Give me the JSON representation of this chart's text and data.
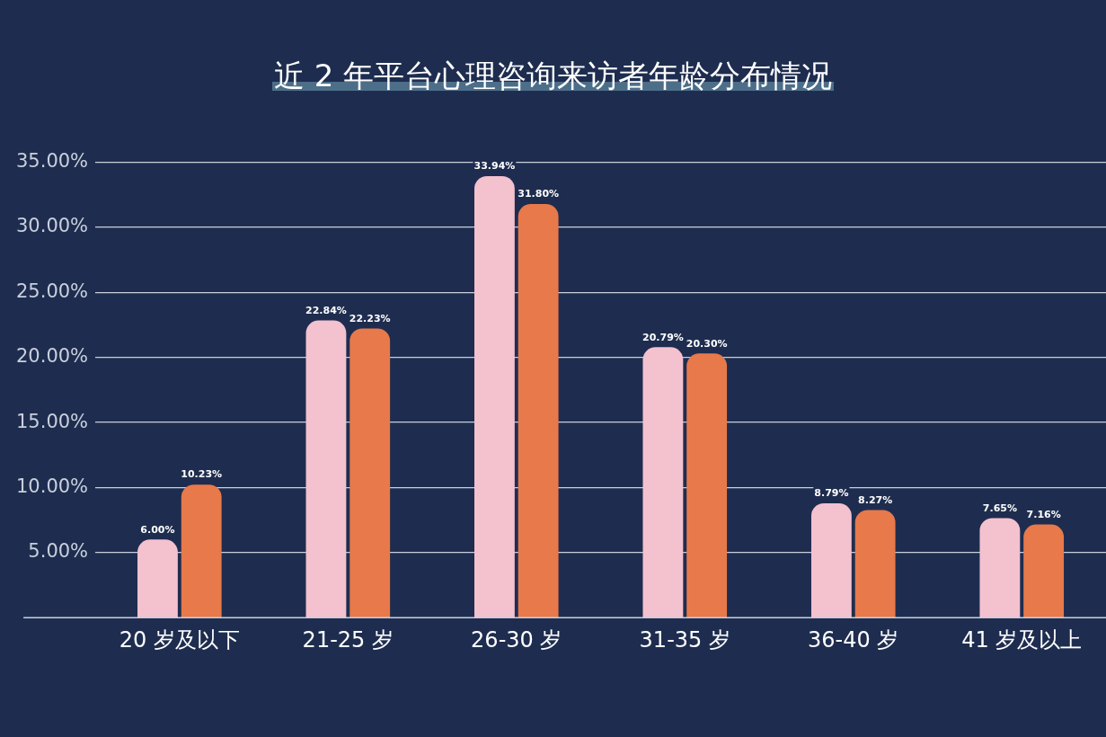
{
  "chart_data": {
    "type": "bar",
    "title": "近 2 年平台心理咨询来访者年龄分布情况",
    "categories": [
      "20 岁及以下",
      "21-25 岁",
      "26-30 岁",
      "31-35 岁",
      "36-40 岁",
      "41 岁及以上"
    ],
    "series": [
      {
        "color": "#f4c1cf",
        "values": [
          6.0,
          22.84,
          33.94,
          20.79,
          8.79,
          7.65
        ],
        "value_labels": [
          "6.00%",
          "22.84%",
          "33.94%",
          "20.79%",
          "8.79%",
          "7.65%"
        ]
      },
      {
        "color": "#e8794a",
        "values": [
          10.23,
          22.23,
          31.8,
          20.3,
          8.27,
          7.16
        ],
        "value_labels": [
          "10.23%",
          "22.23%",
          "31.80%",
          "20.30%",
          "8.27%",
          "7.16%"
        ]
      }
    ],
    "ylim": [
      0,
      35
    ],
    "yticks": [
      {
        "value": 5,
        "label": "5.00%"
      },
      {
        "value": 10,
        "label": "10.00%"
      },
      {
        "value": 15,
        "label": "15.00%"
      },
      {
        "value": 20,
        "label": "20.00%"
      },
      {
        "value": 25,
        "label": "25.00%"
      },
      {
        "value": 30,
        "label": "30.00%"
      },
      {
        "value": 35,
        "label": "35.00%"
      }
    ],
    "grid": "y",
    "legend": false
  }
}
